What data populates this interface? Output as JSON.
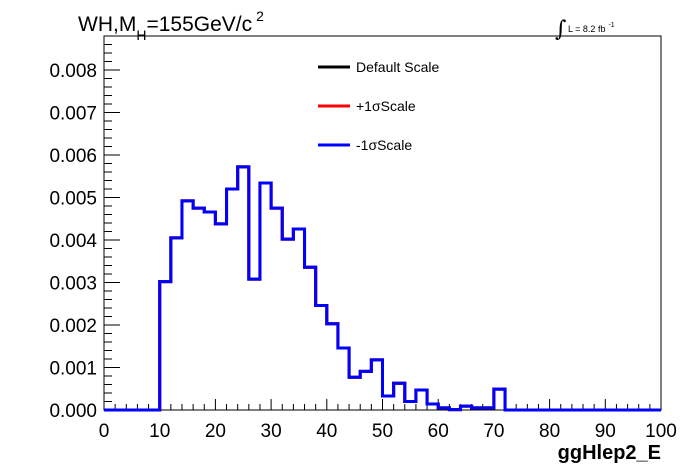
{
  "title": {
    "main": "WH,M",
    "subscript": "H",
    "rest": "=155GeV/c",
    "superscript": "2"
  },
  "luminosity": {
    "integral_symbol": "∫",
    "text": "L = 8.2 fb",
    "superscript": "-1"
  },
  "chart_data": {
    "type": "histogram",
    "xlabel": "ggHlep2_E",
    "ylabel": "",
    "xlim": [
      0,
      100
    ],
    "ylim": [
      0,
      0.0088
    ],
    "x_ticks": [
      "0",
      "10",
      "20",
      "30",
      "40",
      "50",
      "60",
      "70",
      "80",
      "90",
      "100"
    ],
    "y_ticks": [
      "0.000",
      "0.001",
      "0.002",
      "0.003",
      "0.004",
      "0.005",
      "0.006",
      "0.007",
      "0.008"
    ],
    "bin_edges": [
      0,
      2,
      4,
      6,
      8,
      10,
      12,
      14,
      16,
      18,
      20,
      22,
      24,
      26,
      28,
      30,
      32,
      34,
      36,
      38,
      40,
      42,
      44,
      46,
      48,
      50,
      52,
      54,
      56,
      58,
      60,
      62,
      64,
      66,
      68,
      70,
      72,
      74,
      76,
      78,
      80,
      82,
      84,
      86,
      88,
      90,
      92,
      94,
      96,
      98,
      100
    ],
    "series": [
      {
        "name": "Default Scale",
        "color": "#000000",
        "values": [
          0,
          0,
          0,
          0,
          0,
          0.00302,
          0.00405,
          0.00492,
          0.00475,
          0.00466,
          0.00438,
          0.0052,
          0.00572,
          0.00308,
          0.00534,
          0.00475,
          0.00402,
          0.00426,
          0.00336,
          0.00246,
          0.00203,
          0.00146,
          0.00077,
          0.00091,
          0.00118,
          0.00033,
          0.00063,
          0.0002,
          0.00047,
          0.00014,
          5e-05,
          1e-05,
          9e-05,
          5e-05,
          5e-05,
          0.00049,
          0,
          0,
          0,
          0,
          0,
          0,
          0,
          0,
          0,
          0,
          0,
          0,
          0,
          0
        ]
      },
      {
        "name": "+1σScale",
        "color": "#ff0000",
        "values": [
          0,
          0,
          0,
          0,
          0,
          0.00302,
          0.00405,
          0.00492,
          0.00475,
          0.00466,
          0.00438,
          0.0052,
          0.00572,
          0.00308,
          0.00534,
          0.00475,
          0.00402,
          0.00426,
          0.00336,
          0.00246,
          0.00203,
          0.00146,
          0.00077,
          0.00091,
          0.00118,
          0.00033,
          0.00063,
          0.0002,
          0.00047,
          0.00014,
          5e-05,
          1e-05,
          9e-05,
          5e-05,
          5e-05,
          0.00049,
          0,
          0,
          0,
          0,
          0,
          0,
          0,
          0,
          0,
          0,
          0,
          0,
          0,
          0
        ]
      },
      {
        "name": "-1σScale",
        "color": "#0000ff",
        "values": [
          0,
          0,
          0,
          0,
          0,
          0.00302,
          0.00405,
          0.00492,
          0.00475,
          0.00466,
          0.00438,
          0.0052,
          0.00572,
          0.00308,
          0.00534,
          0.00475,
          0.00402,
          0.00426,
          0.00336,
          0.00246,
          0.00203,
          0.00146,
          0.00077,
          0.00091,
          0.00118,
          0.00033,
          0.00063,
          0.0002,
          0.00047,
          0.00014,
          5e-05,
          1e-05,
          9e-05,
          5e-05,
          5e-05,
          0.00049,
          0,
          0,
          0,
          0,
          0,
          0,
          0,
          0,
          0,
          0,
          0,
          0,
          0,
          0
        ]
      }
    ],
    "legend_position": "top-center",
    "grid": false
  }
}
